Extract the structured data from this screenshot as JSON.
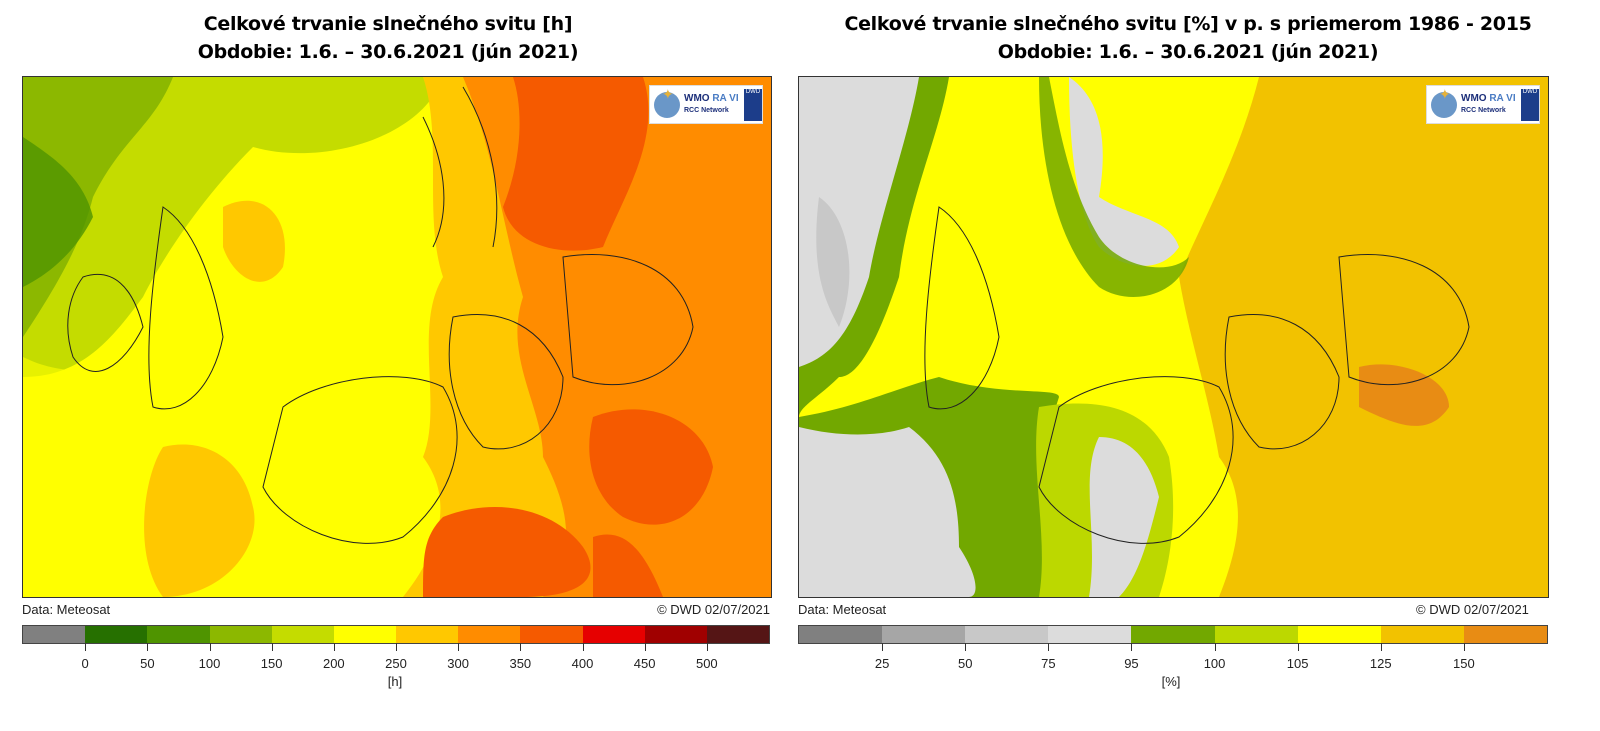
{
  "left": {
    "title_line1": "Celkové trvanie slnečného svitu [h]",
    "title_line2": "Obdobie: 1.6. – 30.6.2021 (jún 2021)",
    "data_source": "Data: Meteosat",
    "copyright": "© DWD 02/07/2021",
    "unit": "[h]",
    "legend_colors": [
      "#808080",
      "#267000",
      "#4f9400",
      "#8cb800",
      "#c4dc00",
      "#ffff00",
      "#ffc800",
      "#ff8c00",
      "#f55a00",
      "#e60000",
      "#a00000",
      "#551515"
    ],
    "legend_ticks": [
      "0",
      "50",
      "100",
      "150",
      "200",
      "250",
      "300",
      "350",
      "400",
      "450",
      "500"
    ],
    "logo": {
      "wmo": "WMO",
      "ravi": "RA VI",
      "network": "RCC Network",
      "dwd": "DWD"
    }
  },
  "right": {
    "title_line1": "Celkové trvanie slnečného svitu [%] v p. s priemerom 1986 - 2015",
    "title_line2": "Obdobie: 1.6. – 30.6.2021 (jún 2021)",
    "data_source": "Data: Meteosat",
    "copyright": "© DWD 02/07/2021",
    "unit": "[%]",
    "legend_colors": [
      "#808080",
      "#a6a6a6",
      "#c8c8c8",
      "#dcdcdc",
      "#72a800",
      "#bcd800",
      "#ffff00",
      "#f2c200",
      "#e88c14"
    ],
    "legend_ticks": [
      "25",
      "50",
      "75",
      "95",
      "100",
      "105",
      "125",
      "150"
    ],
    "logo": {
      "wmo": "WMO",
      "ravi": "RA VI",
      "network": "RCC Network",
      "dwd": "DWD"
    }
  }
}
